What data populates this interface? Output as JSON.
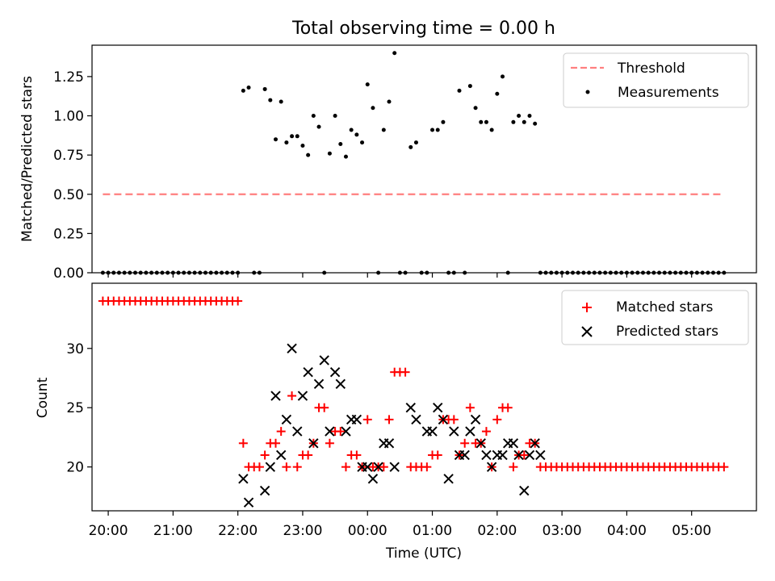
{
  "chart_data": [
    {
      "type": "scatter",
      "title": "Total observing time = 0.00 h",
      "xlabel": "",
      "ylabel": "Matched/Predicted stars",
      "ylim": [
        0,
        1.45
      ],
      "yticks": [
        0.0,
        0.25,
        0.5,
        0.75,
        1.0,
        1.25
      ],
      "ytick_labels": [
        "0.00",
        "0.25",
        "0.50",
        "0.75",
        "1.00",
        "1.25"
      ],
      "grid": false,
      "legend_position": "top-right",
      "threshold": {
        "name": "Threshold",
        "y": 0.5,
        "x_start": "19:55",
        "x_end": "05:30",
        "color": "#ff7f7f"
      },
      "series": [
        {
          "name": "Measurements",
          "marker": "dot",
          "color": "#000000",
          "x": [
            "19:55",
            "20:00",
            "20:05",
            "20:10",
            "20:15",
            "20:20",
            "20:25",
            "20:30",
            "20:35",
            "20:40",
            "20:45",
            "20:50",
            "20:55",
            "21:00",
            "21:05",
            "21:10",
            "21:15",
            "21:20",
            "21:25",
            "21:30",
            "21:35",
            "21:40",
            "21:45",
            "21:50",
            "21:55",
            "22:00",
            "22:05",
            "22:10",
            "22:15",
            "22:20",
            "22:25",
            "22:30",
            "22:35",
            "22:40",
            "22:45",
            "22:50",
            "22:55",
            "23:00",
            "23:05",
            "23:10",
            "23:15",
            "23:20",
            "23:25",
            "23:30",
            "23:35",
            "23:40",
            "23:45",
            "23:50",
            "23:55",
            "00:00",
            "00:05",
            "00:10",
            "00:15",
            "00:20",
            "00:25",
            "00:30",
            "00:35",
            "00:40",
            "00:45",
            "00:50",
            "00:55",
            "01:00",
            "01:05",
            "01:10",
            "01:15",
            "01:20",
            "01:25",
            "01:30",
            "01:35",
            "01:40",
            "01:45",
            "01:50",
            "01:55",
            "02:00",
            "02:05",
            "02:10",
            "02:15",
            "02:20",
            "02:25",
            "02:30",
            "02:35",
            "02:40",
            "02:45",
            "02:50",
            "02:55",
            "03:00",
            "03:05",
            "03:10",
            "03:15",
            "03:20",
            "03:25",
            "03:30",
            "03:35",
            "03:40",
            "03:45",
            "03:50",
            "03:55",
            "04:00",
            "04:05",
            "04:10",
            "04:15",
            "04:20",
            "04:25",
            "04:30",
            "04:35",
            "04:40",
            "04:45",
            "04:50",
            "04:55",
            "05:00",
            "05:05",
            "05:10",
            "05:15",
            "05:20",
            "05:25",
            "05:30"
          ],
          "y": [
            0,
            0,
            0,
            0,
            0,
            0,
            0,
            0,
            0,
            0,
            0,
            0,
            0,
            0,
            0,
            0,
            0,
            0,
            0,
            0,
            0,
            0,
            0,
            0,
            0,
            0,
            1.16,
            1.18,
            0,
            0,
            1.17,
            1.1,
            0.85,
            1.09,
            0.83,
            0.87,
            0.87,
            0.81,
            0.75,
            1.0,
            0.93,
            0,
            0.76,
            1.0,
            0.82,
            0.74,
            0.91,
            0.88,
            0.83,
            1.2,
            1.05,
            0,
            0.91,
            1.09,
            1.4,
            0,
            0,
            0.8,
            0.83,
            0,
            0,
            0.91,
            0.91,
            0.96,
            0,
            0,
            1.16,
            0,
            1.19,
            1.05,
            0.96,
            0.96,
            0.91,
            1.14,
            1.25,
            0,
            0.96,
            1.0,
            0.96,
            1.0,
            0.95,
            0,
            0,
            0,
            0,
            0,
            0,
            0,
            0,
            0,
            0,
            0,
            0,
            0,
            0,
            0,
            0,
            0,
            0,
            0,
            0,
            0,
            0,
            0,
            0,
            0,
            0,
            0,
            0,
            0,
            0,
            0,
            0,
            0,
            0,
            0
          ]
        }
      ]
    },
    {
      "type": "scatter",
      "title": "",
      "xlabel": "Time (UTC)",
      "ylabel": "Count",
      "xlim": [
        "19:45",
        "06:00"
      ],
      "xticks": [
        "20:00",
        "21:00",
        "22:00",
        "23:00",
        "00:00",
        "01:00",
        "02:00",
        "03:00",
        "04:00",
        "05:00"
      ],
      "ylim": [
        16.3,
        35.5
      ],
      "yticks": [
        20,
        25,
        30
      ],
      "ytick_labels": [
        "20",
        "25",
        "30"
      ],
      "grid": false,
      "legend_position": "top-right",
      "series": [
        {
          "name": "Matched stars",
          "marker": "plus",
          "color": "#ff0000",
          "x": [
            "19:55",
            "20:00",
            "20:05",
            "20:10",
            "20:15",
            "20:20",
            "20:25",
            "20:30",
            "20:35",
            "20:40",
            "20:45",
            "20:50",
            "20:55",
            "21:00",
            "21:05",
            "21:10",
            "21:15",
            "21:20",
            "21:25",
            "21:30",
            "21:35",
            "21:40",
            "21:45",
            "21:50",
            "21:55",
            "22:00",
            "22:05",
            "22:10",
            "22:15",
            "22:20",
            "22:25",
            "22:30",
            "22:35",
            "22:40",
            "22:45",
            "22:50",
            "22:55",
            "23:00",
            "23:05",
            "23:10",
            "23:15",
            "23:20",
            "23:25",
            "23:30",
            "23:35",
            "23:40",
            "23:45",
            "23:50",
            "23:55",
            "00:00",
            "00:05",
            "00:10",
            "00:15",
            "00:20",
            "00:25",
            "00:30",
            "00:35",
            "00:40",
            "00:45",
            "00:50",
            "00:55",
            "01:00",
            "01:05",
            "01:10",
            "01:15",
            "01:20",
            "01:25",
            "01:30",
            "01:35",
            "01:40",
            "01:45",
            "01:50",
            "01:55",
            "02:00",
            "02:05",
            "02:10",
            "02:15",
            "02:20",
            "02:25",
            "02:30",
            "02:35",
            "02:40",
            "02:45",
            "02:50",
            "02:55",
            "03:00",
            "03:05",
            "03:10",
            "03:15",
            "03:20",
            "03:25",
            "03:30",
            "03:35",
            "03:40",
            "03:45",
            "03:50",
            "03:55",
            "04:00",
            "04:05",
            "04:10",
            "04:15",
            "04:20",
            "04:25",
            "04:30",
            "04:35",
            "04:40",
            "04:45",
            "04:50",
            "04:55",
            "05:00",
            "05:05",
            "05:10",
            "05:15",
            "05:20",
            "05:25",
            "05:30"
          ],
          "y": [
            34,
            34,
            34,
            34,
            34,
            34,
            34,
            34,
            34,
            34,
            34,
            34,
            34,
            34,
            34,
            34,
            34,
            34,
            34,
            34,
            34,
            34,
            34,
            34,
            34,
            34,
            22,
            20,
            20,
            20,
            21,
            22,
            22,
            23,
            20,
            26,
            20,
            21,
            21,
            22,
            25,
            25,
            22,
            23,
            23,
            20,
            21,
            21,
            20,
            24,
            20,
            20,
            20,
            24,
            28,
            28,
            28,
            20,
            20,
            20,
            20,
            21,
            21,
            24,
            24,
            24,
            21,
            22,
            25,
            22,
            22,
            23,
            20,
            24,
            25,
            25,
            20,
            21,
            21,
            22,
            22,
            20,
            20,
            20,
            20,
            20,
            20,
            20,
            20,
            20,
            20,
            20,
            20,
            20,
            20,
            20,
            20,
            20,
            20,
            20,
            20,
            20,
            20,
            20,
            20,
            20,
            20,
            20,
            20,
            20,
            20,
            20,
            20,
            20,
            20,
            20
          ]
        },
        {
          "name": "Predicted stars",
          "marker": "x",
          "color": "#000000",
          "x": [
            "22:05",
            "22:10",
            "22:25",
            "22:30",
            "22:35",
            "22:40",
            "22:45",
            "22:50",
            "22:55",
            "23:00",
            "23:05",
            "23:10",
            "23:15",
            "23:20",
            "23:25",
            "23:30",
            "23:35",
            "23:40",
            "23:45",
            "23:50",
            "23:55",
            "00:00",
            "00:05",
            "00:10",
            "00:15",
            "00:20",
            "00:25",
            "00:40",
            "00:45",
            "00:55",
            "01:00",
            "01:05",
            "01:10",
            "01:15",
            "01:20",
            "01:25",
            "01:30",
            "01:35",
            "01:40",
            "01:45",
            "01:50",
            "01:55",
            "02:00",
            "02:05",
            "02:10",
            "02:15",
            "02:20",
            "02:25",
            "02:30",
            "02:35",
            "02:40"
          ],
          "y": [
            19,
            17,
            18,
            20,
            26,
            21,
            24,
            30,
            23,
            26,
            28,
            22,
            27,
            29,
            23,
            28,
            27,
            23,
            24,
            24,
            20,
            20,
            19,
            20,
            22,
            22,
            20,
            25,
            24,
            23,
            23,
            25,
            24,
            19,
            23,
            21,
            21,
            23,
            24,
            22,
            21,
            20,
            21,
            21,
            22,
            22,
            21,
            18,
            21,
            22,
            21
          ]
        }
      ]
    }
  ]
}
